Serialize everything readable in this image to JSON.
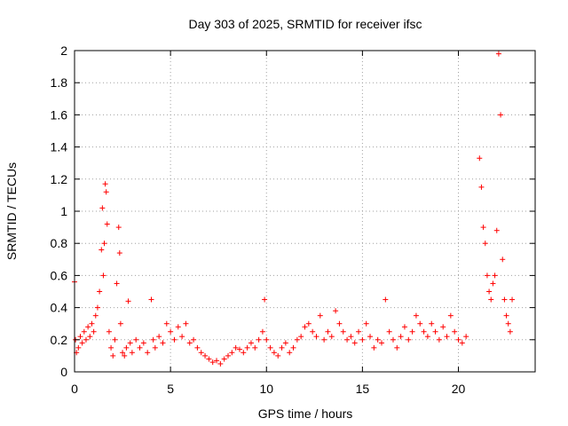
{
  "chart_data": {
    "type": "scatter",
    "title": "Day 303 of 2025, SRMTID for receiver ifsc",
    "xlabel": "GPS time / hours",
    "ylabel": "SRMTID / TECUs",
    "xlim": [
      0,
      24
    ],
    "ylim": [
      0,
      2
    ],
    "x_ticks": [
      0,
      5,
      10,
      15,
      20
    ],
    "x_tick_labels": [
      "0",
      "5",
      "10",
      "15",
      "20"
    ],
    "y_ticks": [
      0,
      0.2,
      0.4,
      0.6,
      0.8,
      1,
      1.2,
      1.4,
      1.6,
      1.8,
      2
    ],
    "y_tick_labels": [
      "0",
      "0.2",
      "0.4",
      "0.6",
      "0.8",
      "1",
      "1.2",
      "1.4",
      "1.6",
      "1.8",
      "2"
    ],
    "grid": true,
    "marker": "+",
    "color": "#ff0000",
    "series": [
      {
        "name": "SRMTID",
        "x": [
          0.0,
          0.05,
          0.1,
          0.2,
          0.3,
          0.4,
          0.5,
          0.6,
          0.7,
          0.8,
          0.9,
          1.0,
          1.1,
          1.2,
          1.3,
          1.4,
          1.45,
          1.5,
          1.55,
          1.6,
          1.65,
          1.7,
          1.8,
          1.9,
          2.0,
          2.1,
          2.2,
          2.3,
          2.35,
          2.4,
          2.5,
          2.6,
          2.7,
          2.8,
          2.9,
          3.0,
          3.2,
          3.4,
          3.6,
          3.8,
          4.0,
          4.1,
          4.2,
          4.4,
          4.6,
          4.8,
          5.0,
          5.2,
          5.4,
          5.6,
          5.8,
          6.0,
          6.2,
          6.4,
          6.6,
          6.8,
          7.0,
          7.2,
          7.4,
          7.6,
          7.8,
          8.0,
          8.2,
          8.4,
          8.6,
          8.8,
          9.0,
          9.2,
          9.4,
          9.6,
          9.8,
          9.9,
          10.0,
          10.2,
          10.4,
          10.6,
          10.8,
          11.0,
          11.2,
          11.4,
          11.6,
          11.8,
          12.0,
          12.2,
          12.4,
          12.6,
          12.8,
          13.0,
          13.2,
          13.4,
          13.6,
          13.8,
          14.0,
          14.2,
          14.4,
          14.6,
          14.8,
          15.0,
          15.2,
          15.4,
          15.6,
          15.8,
          16.0,
          16.2,
          16.4,
          16.6,
          16.8,
          17.0,
          17.2,
          17.4,
          17.6,
          17.8,
          18.0,
          18.2,
          18.4,
          18.6,
          18.8,
          19.0,
          19.2,
          19.4,
          19.6,
          19.8,
          20.0,
          20.2,
          20.4,
          21.1,
          21.2,
          21.3,
          21.4,
          21.5,
          21.6,
          21.7,
          21.8,
          21.9,
          22.0,
          22.1,
          22.2,
          22.3,
          22.4,
          22.5,
          22.6,
          22.7,
          22.8
        ],
        "y": [
          0.56,
          0.2,
          0.12,
          0.15,
          0.22,
          0.18,
          0.25,
          0.2,
          0.28,
          0.22,
          0.3,
          0.25,
          0.35,
          0.4,
          0.5,
          0.76,
          1.02,
          0.6,
          0.8,
          1.17,
          1.12,
          0.92,
          0.25,
          0.15,
          0.1,
          0.2,
          0.55,
          0.9,
          0.74,
          0.3,
          0.12,
          0.1,
          0.15,
          0.44,
          0.18,
          0.12,
          0.2,
          0.15,
          0.18,
          0.12,
          0.45,
          0.2,
          0.15,
          0.22,
          0.18,
          0.3,
          0.25,
          0.2,
          0.28,
          0.22,
          0.3,
          0.18,
          0.2,
          0.15,
          0.12,
          0.1,
          0.08,
          0.06,
          0.07,
          0.05,
          0.08,
          0.1,
          0.12,
          0.15,
          0.14,
          0.12,
          0.15,
          0.18,
          0.15,
          0.2,
          0.25,
          0.45,
          0.2,
          0.15,
          0.12,
          0.1,
          0.15,
          0.18,
          0.12,
          0.15,
          0.2,
          0.22,
          0.28,
          0.3,
          0.25,
          0.22,
          0.35,
          0.2,
          0.25,
          0.22,
          0.38,
          0.3,
          0.25,
          0.2,
          0.22,
          0.18,
          0.25,
          0.2,
          0.3,
          0.22,
          0.15,
          0.2,
          0.18,
          0.45,
          0.25,
          0.2,
          0.15,
          0.22,
          0.28,
          0.2,
          0.25,
          0.35,
          0.3,
          0.25,
          0.22,
          0.3,
          0.25,
          0.2,
          0.28,
          0.22,
          0.35,
          0.25,
          0.2,
          0.18,
          0.22,
          1.33,
          1.15,
          0.9,
          0.8,
          0.6,
          0.5,
          0.45,
          0.55,
          0.6,
          0.88,
          1.98,
          1.6,
          0.7,
          0.45,
          0.35,
          0.3,
          0.25,
          0.45
        ]
      }
    ]
  }
}
